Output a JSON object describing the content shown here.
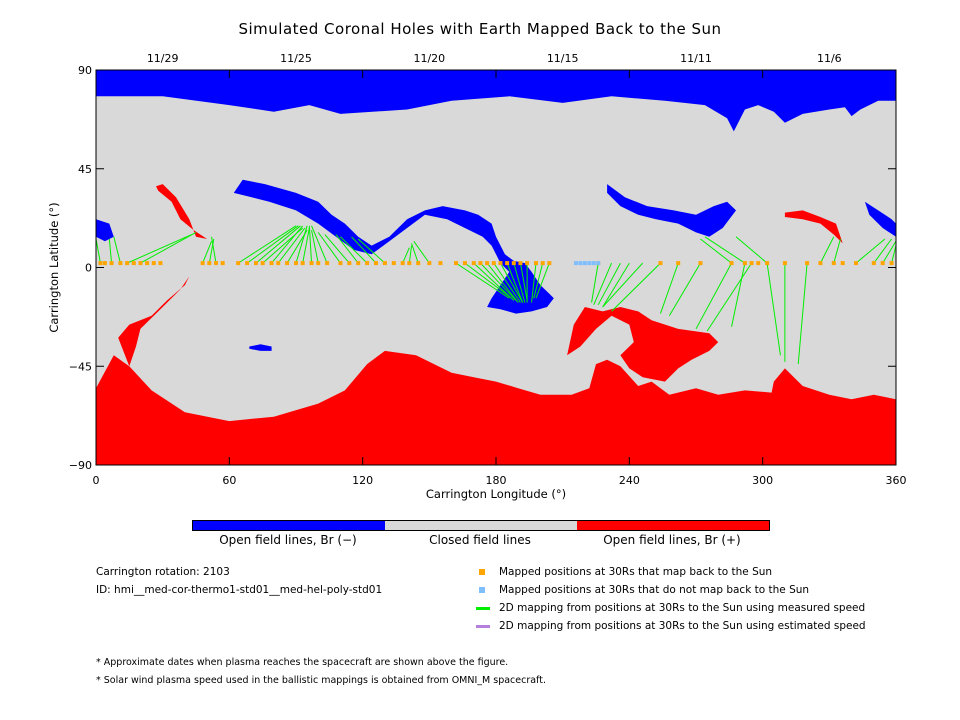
{
  "chart_data": {
    "type": "map",
    "title": "Simulated Coronal Holes with Earth Mapped Back to the Sun",
    "xlabel": "Carrington Longitude (°)",
    "ylabel": "Carrington Latitude (°)",
    "xlim": [
      0,
      360
    ],
    "ylim": [
      -90,
      90
    ],
    "x_ticks": [
      0,
      60,
      120,
      180,
      240,
      300,
      360
    ],
    "y_ticks": [
      -90,
      -45,
      0,
      45,
      90
    ],
    "y_tick_labels": [
      "−90",
      "−45",
      "0",
      "45",
      "90"
    ],
    "top_dates": [
      {
        "label": "11/29",
        "lon": 30
      },
      {
        "label": "11/25",
        "lon": 90
      },
      {
        "label": "11/20",
        "lon": 150
      },
      {
        "label": "11/15",
        "lon": 210
      },
      {
        "label": "11/11",
        "lon": 270
      },
      {
        "label": "11/6",
        "lon": 330
      }
    ],
    "regions": [
      {
        "name": "Open field lines, Br (−)",
        "color": "#0000ff"
      },
      {
        "name": "Closed field lines",
        "color": "#d9d9d9"
      },
      {
        "name": "Open field lines, Br (+)",
        "color": "#ff0000"
      }
    ],
    "mapped_points_lat": 2,
    "mapped_points_lon": [
      2,
      4,
      7,
      11,
      14,
      17,
      20,
      23,
      26,
      29,
      48,
      51,
      54,
      57,
      64,
      68,
      72,
      75,
      79,
      82,
      86,
      90,
      93,
      97,
      100,
      104,
      110,
      114,
      118,
      122,
      126,
      130,
      134,
      138,
      141,
      145,
      150,
      155,
      162,
      166,
      170,
      173,
      176,
      179,
      182,
      185,
      188,
      191,
      194,
      198,
      201,
      204,
      226,
      254,
      262,
      272,
      286,
      292,
      295,
      298,
      302,
      310,
      320,
      326,
      332,
      336,
      342,
      350,
      354,
      358
    ],
    "unmapped_points_lon": [
      216,
      218,
      220,
      222,
      224,
      226
    ],
    "mapping_lines": [
      [
        2,
        2,
        0,
        13
      ],
      [
        7,
        2,
        6,
        13
      ],
      [
        11,
        2,
        8,
        14
      ],
      [
        14,
        2,
        43,
        15
      ],
      [
        20,
        2,
        45,
        16
      ],
      [
        48,
        2,
        52,
        12
      ],
      [
        51,
        2,
        53,
        13
      ],
      [
        54,
        2,
        52,
        14
      ],
      [
        64,
        2,
        90,
        19
      ],
      [
        68,
        2,
        91,
        19
      ],
      [
        72,
        2,
        92,
        19
      ],
      [
        75,
        2,
        93,
        18
      ],
      [
        79,
        2,
        93,
        19
      ],
      [
        82,
        2,
        94,
        18
      ],
      [
        86,
        2,
        95,
        17
      ],
      [
        90,
        2,
        95,
        19
      ],
      [
        93,
        2,
        96,
        18
      ],
      [
        97,
        2,
        96,
        19
      ],
      [
        100,
        2,
        97,
        17
      ],
      [
        104,
        2,
        97,
        19
      ],
      [
        110,
        2,
        100,
        16
      ],
      [
        114,
        2,
        103,
        15
      ],
      [
        118,
        2,
        108,
        15
      ],
      [
        122,
        2,
        110,
        14
      ],
      [
        126,
        2,
        115,
        14
      ],
      [
        130,
        2,
        118,
        13
      ],
      [
        138,
        2,
        141,
        9
      ],
      [
        141,
        2,
        142,
        10
      ],
      [
        145,
        2,
        142,
        11
      ],
      [
        150,
        2,
        143,
        12
      ],
      [
        162,
        2,
        186,
        -14
      ],
      [
        166,
        2,
        187,
        -14
      ],
      [
        170,
        2,
        188,
        -15
      ],
      [
        173,
        2,
        189,
        -15
      ],
      [
        176,
        2,
        190,
        -16
      ],
      [
        179,
        2,
        191,
        -16
      ],
      [
        182,
        2,
        192,
        -16
      ],
      [
        185,
        2,
        192,
        -16
      ],
      [
        188,
        2,
        193,
        -16
      ],
      [
        191,
        2,
        194,
        -15
      ],
      [
        194,
        2,
        194,
        -16
      ],
      [
        198,
        2,
        196,
        -16
      ],
      [
        201,
        2,
        197,
        -14
      ],
      [
        204,
        2,
        198,
        -14
      ],
      [
        226,
        2,
        223,
        -16
      ],
      [
        232,
        2,
        224,
        -17
      ],
      [
        236,
        2,
        226,
        -17
      ],
      [
        240,
        2,
        228,
        -18
      ],
      [
        246,
        2,
        228,
        -18
      ],
      [
        254,
        2,
        232,
        -20
      ],
      [
        262,
        2,
        254,
        -21
      ],
      [
        272,
        2,
        258,
        -22
      ],
      [
        286,
        2,
        270,
        -28
      ],
      [
        292,
        2,
        286,
        -27
      ],
      [
        295,
        2,
        275,
        -29
      ],
      [
        302,
        2,
        308,
        -40
      ],
      [
        310,
        2,
        310,
        -43
      ],
      [
        320,
        2,
        316,
        -44
      ],
      [
        286,
        2,
        272,
        13
      ],
      [
        292,
        2,
        274,
        14
      ],
      [
        302,
        2,
        288,
        14
      ],
      [
        326,
        2,
        332,
        14
      ],
      [
        332,
        2,
        335,
        13
      ],
      [
        342,
        2,
        355,
        13
      ],
      [
        350,
        2,
        358,
        13
      ],
      [
        354,
        2,
        360,
        12
      ],
      [
        358,
        2,
        360,
        10
      ]
    ],
    "spacecraft": "OMNI_M"
  },
  "colorbar_labels": [
    "Open field lines, Br (−)",
    "Closed field lines",
    "Open field lines, Br (+)"
  ],
  "info": {
    "rotation": "Carrington rotation: 2103",
    "id": "ID: hmi__med-cor-thermo1-std01__med-hel-poly-std01"
  },
  "legend": {
    "mapped": "Mapped positions at 30Rs that map back to the Sun",
    "unmapped": "Mapped positions at 30Rs that do not map back to the Sun",
    "measured": "2D mapping from positions at 30Rs to the Sun using measured speed",
    "estimated": "2D mapping from positions at 30Rs to the Sun using estimated speed",
    "colors": {
      "mapped": "#ffa500",
      "unmapped": "#7fbfff",
      "measured": "#00ee00",
      "estimated": "#b57fdd"
    }
  },
  "notes": [
    "* Approximate dates when plasma reaches the spacecraft are shown above the figure.",
    "* Solar wind plasma speed used in the ballistic mappings is obtained from OMNI_M spacecraft."
  ]
}
